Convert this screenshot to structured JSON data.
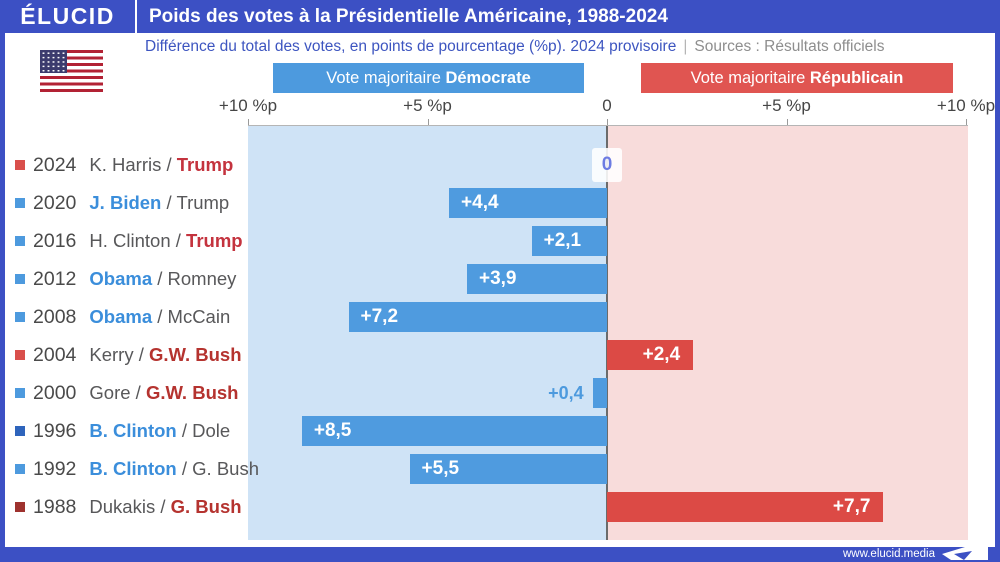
{
  "header": {
    "logo": "ÉLUCID",
    "title": "Poids des votes à la Présidentielle Américaine, 1988-2024"
  },
  "subtitle": {
    "main": "Différence du total des votes, en points de pourcentage (%p). 2024 provisoire",
    "separator": "|",
    "sources": "Sources : Résultats officiels"
  },
  "legend": {
    "dem": {
      "prefix": "Vote majoritaire ",
      "bold": "Démocrate",
      "color": "#4d9ade"
    },
    "rep": {
      "prefix": "Vote majoritaire ",
      "bold": "Républicain",
      "color": "#e05551"
    }
  },
  "footer": {
    "url": "www.elucid.media"
  },
  "icons": {
    "flag": "us-flag-icon",
    "plane": "paper-plane-icon"
  },
  "colors": {
    "header_blue": "#3c50c4",
    "dem_bar": "#4f9bdf",
    "rep_bar": "#dc4a45",
    "dem_bg": "#cfe3f6",
    "rep_bg": "#f8dcdb",
    "dem_name": "#3b8edb",
    "rep_name": "#bb3434",
    "zero_label": "#6d7ce2"
  },
  "chart_data": {
    "type": "bar",
    "orientation": "horizontal",
    "title": "Poids des votes à la Présidentielle Américaine, 1988-2024",
    "xlabel": "Différence du total des votes, en points de pourcentage (%p)",
    "axis_ticks": [
      "+10 %p",
      "+5 %p",
      "0",
      "+5 %p",
      "+10 %p"
    ],
    "axis_tick_values": [
      10,
      5,
      0,
      5,
      10
    ],
    "xlim": [
      10,
      10
    ],
    "legend_position": "top",
    "grid": false,
    "categories": [
      "2024",
      "2020",
      "2016",
      "2012",
      "2008",
      "2004",
      "2000",
      "1996",
      "1992",
      "1988"
    ],
    "series": [
      {
        "name": "Vote majoritaire Démocrate",
        "values": [
          0,
          4.4,
          2.1,
          3.9,
          7.2,
          0,
          0.4,
          8.5,
          5.5,
          0
        ]
      },
      {
        "name": "Vote majoritaire Républicain",
        "values": [
          0,
          0,
          0,
          0,
          0,
          2.4,
          0,
          0,
          0,
          7.7
        ]
      }
    ],
    "rows": [
      {
        "year": "2024",
        "square": "#d94f4b",
        "dem": "K. Harris",
        "rep": "Trump",
        "winner": "rep",
        "winner_color": "#c4333e",
        "side": "zero",
        "value": 0,
        "label": "0"
      },
      {
        "year": "2020",
        "square": "#4d9ade",
        "dem": "J. Biden",
        "rep": "Trump",
        "winner": "dem",
        "winner_color": "#3b8edb",
        "side": "dem",
        "value": 4.4,
        "label": "+4,4"
      },
      {
        "year": "2016",
        "square": "#4d9ade",
        "dem": "H. Clinton",
        "rep": "Trump",
        "winner": "rep",
        "winner_color": "#c4333e",
        "side": "dem",
        "value": 2.1,
        "label": "+2,1"
      },
      {
        "year": "2012",
        "square": "#4d9ade",
        "dem": "Obama",
        "rep": "Romney",
        "winner": "dem",
        "winner_color": "#3b8edb",
        "side": "dem",
        "value": 3.9,
        "label": "+3,9"
      },
      {
        "year": "2008",
        "square": "#4d9ade",
        "dem": "Obama",
        "rep": "McCain",
        "winner": "dem",
        "winner_color": "#3b8edb",
        "side": "dem",
        "value": 7.2,
        "label": "+7,2"
      },
      {
        "year": "2004",
        "square": "#d94f4b",
        "dem": "Kerry",
        "rep": "G.W. Bush",
        "winner": "rep",
        "winner_color": "#b5332f",
        "side": "rep",
        "value": 2.4,
        "label": "+2,4"
      },
      {
        "year": "2000",
        "square": "#4d9ade",
        "dem": "Gore",
        "rep": "G.W. Bush",
        "winner": "rep",
        "winner_color": "#b5332f",
        "side": "dem",
        "value": 0.4,
        "label": "+0,4",
        "label_outside": true
      },
      {
        "year": "1996",
        "square": "#2e64bc",
        "dem": "B. Clinton",
        "rep": "Dole",
        "winner": "dem",
        "winner_color": "#3b8edb",
        "side": "dem",
        "value": 8.5,
        "label": "+8,5"
      },
      {
        "year": "1992",
        "square": "#4d9ade",
        "dem": "B. Clinton",
        "rep": "G. Bush",
        "winner": "dem",
        "winner_color": "#3b8edb",
        "side": "dem",
        "value": 5.5,
        "label": "+5,5"
      },
      {
        "year": "1988",
        "square": "#9e322e",
        "dem": "Dukakis",
        "rep": "G. Bush",
        "winner": "rep",
        "winner_color": "#b5332f",
        "side": "rep",
        "value": 7.7,
        "label": "+7,7"
      }
    ]
  }
}
